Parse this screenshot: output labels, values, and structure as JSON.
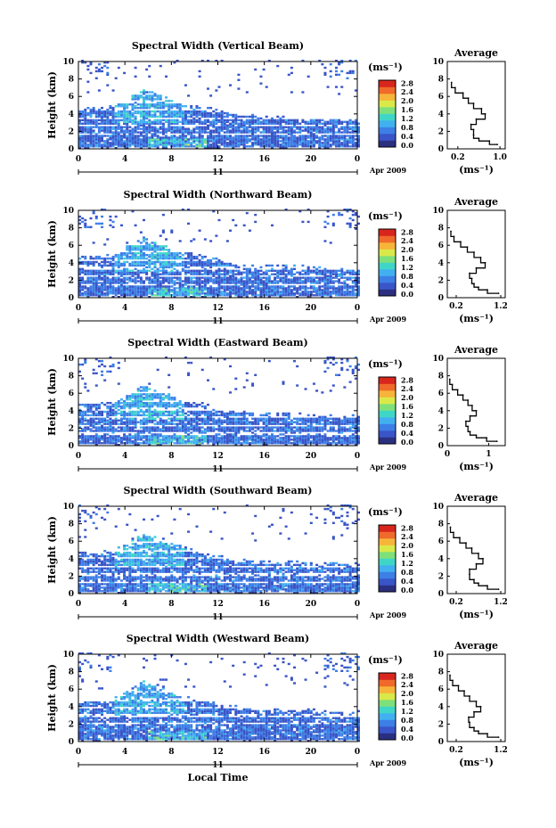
{
  "figure": {
    "x_axis_title": "Local Time",
    "date_label": "Apr 2009",
    "day_label": "11",
    "colorbar_unit": "(ms⁻¹)",
    "colorbar_ticks": [
      "0.0",
      "0.4",
      "0.8",
      "1.2",
      "1.6",
      "2.0",
      "2.4",
      "2.8"
    ],
    "colormap": [
      "#2b2f7f",
      "#3a55c8",
      "#3d7fe6",
      "#42b0f0",
      "#3fd6c8",
      "#7ee07a",
      "#d9e94a",
      "#f7b43a",
      "#f06a2b",
      "#d8261e"
    ]
  },
  "chart_data": [
    {
      "type": "heatmap",
      "title": "Spectral Width (Vertical Beam)",
      "xlabel": "",
      "ylabel": "Height (km)",
      "xlim": [
        0,
        24
      ],
      "ylim": [
        0,
        10
      ],
      "x_ticks": [
        "0",
        "4",
        "8",
        "12",
        "16",
        "20",
        "0"
      ],
      "y_ticks": [
        "0",
        "2",
        "4",
        "6",
        "8",
        "10"
      ],
      "colorbar": {
        "label": "(ms⁻¹)",
        "range": [
          0.0,
          2.8
        ]
      },
      "profile": {
        "type": "line",
        "title": "Average",
        "xlabel": "(ms⁻¹)",
        "x_ticks": [
          "0.2",
          "1.0"
        ],
        "xlim": [
          0.0,
          1.1
        ],
        "y_ticks": [
          "0",
          "2",
          "4",
          "6",
          "8",
          "10"
        ],
        "ylim": [
          0,
          10
        ],
        "points": [
          [
            0.95,
            0.5
          ],
          [
            0.8,
            0.9
          ],
          [
            0.6,
            1.2
          ],
          [
            0.5,
            1.6
          ],
          [
            0.5,
            2.2
          ],
          [
            0.45,
            2.8
          ],
          [
            0.55,
            3.4
          ],
          [
            0.72,
            4.0
          ],
          [
            0.65,
            4.6
          ],
          [
            0.5,
            5.2
          ],
          [
            0.4,
            5.8
          ],
          [
            0.3,
            6.4
          ],
          [
            0.15,
            7.0
          ],
          [
            0.08,
            7.6
          ]
        ]
      }
    },
    {
      "type": "heatmap",
      "title": "Spectral Width (Northward Beam)",
      "xlabel": "",
      "ylabel": "Height (km)",
      "xlim": [
        0,
        24
      ],
      "ylim": [
        0,
        10
      ],
      "x_ticks": [
        "0",
        "4",
        "8",
        "12",
        "16",
        "20",
        "0"
      ],
      "y_ticks": [
        "0",
        "2",
        "4",
        "6",
        "8",
        "10"
      ],
      "colorbar": {
        "label": "(ms⁻¹)",
        "range": [
          0.0,
          2.8
        ]
      },
      "profile": {
        "type": "line",
        "title": "Average",
        "xlabel": "(ms⁻¹)",
        "x_ticks": [
          "0.2",
          "1.2"
        ],
        "xlim": [
          0.0,
          1.3
        ],
        "y_ticks": [
          "0",
          "2",
          "4",
          "6",
          "8",
          "10"
        ],
        "ylim": [
          0,
          10
        ],
        "points": [
          [
            1.15,
            0.5
          ],
          [
            0.9,
            0.9
          ],
          [
            0.7,
            1.2
          ],
          [
            0.6,
            1.6
          ],
          [
            0.55,
            2.2
          ],
          [
            0.5,
            2.8
          ],
          [
            0.65,
            3.4
          ],
          [
            0.85,
            4.0
          ],
          [
            0.75,
            4.6
          ],
          [
            0.6,
            5.2
          ],
          [
            0.45,
            5.8
          ],
          [
            0.3,
            6.4
          ],
          [
            0.15,
            7.0
          ],
          [
            0.08,
            7.6
          ]
        ]
      }
    },
    {
      "type": "heatmap",
      "title": "Spectral Width (Eastward Beam)",
      "xlabel": "",
      "ylabel": "Height (km)",
      "xlim": [
        0,
        24
      ],
      "ylim": [
        0,
        10
      ],
      "x_ticks": [
        "0",
        "4",
        "8",
        "12",
        "16",
        "20",
        "0"
      ],
      "y_ticks": [
        "0",
        "2",
        "4",
        "6",
        "8",
        "10"
      ],
      "colorbar": {
        "label": "(ms⁻¹)",
        "range": [
          0.0,
          2.8
        ]
      },
      "profile": {
        "type": "line",
        "title": "Average",
        "xlabel": "(ms⁻¹)",
        "x_ticks": [
          "0",
          "1"
        ],
        "xlim": [
          0.0,
          1.4
        ],
        "y_ticks": [
          "0",
          "2",
          "4",
          "6",
          "8",
          "10"
        ],
        "ylim": [
          0,
          10
        ],
        "points": [
          [
            1.2,
            0.5
          ],
          [
            0.95,
            0.9
          ],
          [
            0.7,
            1.2
          ],
          [
            0.55,
            1.6
          ],
          [
            0.5,
            2.2
          ],
          [
            0.45,
            2.8
          ],
          [
            0.55,
            3.4
          ],
          [
            0.7,
            4.0
          ],
          [
            0.6,
            4.6
          ],
          [
            0.5,
            5.2
          ],
          [
            0.38,
            5.8
          ],
          [
            0.25,
            6.4
          ],
          [
            0.12,
            7.0
          ],
          [
            0.06,
            7.6
          ]
        ]
      }
    },
    {
      "type": "heatmap",
      "title": "Spectral Width (Southward Beam)",
      "xlabel": "",
      "ylabel": "Height (km)",
      "xlim": [
        0,
        24
      ],
      "ylim": [
        0,
        10
      ],
      "x_ticks": [
        "0",
        "4",
        "8",
        "12",
        "16",
        "20",
        "0"
      ],
      "y_ticks": [
        "0",
        "2",
        "4",
        "6",
        "8",
        "10"
      ],
      "colorbar": {
        "label": "(ms⁻¹)",
        "range": [
          0.0,
          2.8
        ]
      },
      "profile": {
        "type": "line",
        "title": "Average",
        "xlabel": "(ms⁻¹)",
        "x_ticks": [
          "0.2",
          "1.2"
        ],
        "xlim": [
          0.0,
          1.3
        ],
        "y_ticks": [
          "0",
          "2",
          "4",
          "6",
          "8",
          "10"
        ],
        "ylim": [
          0,
          10
        ],
        "points": [
          [
            1.15,
            0.5
          ],
          [
            0.9,
            0.9
          ],
          [
            0.7,
            1.2
          ],
          [
            0.6,
            1.6
          ],
          [
            0.5,
            2.2
          ],
          [
            0.5,
            2.8
          ],
          [
            0.65,
            3.4
          ],
          [
            0.8,
            4.0
          ],
          [
            0.7,
            4.6
          ],
          [
            0.55,
            5.2
          ],
          [
            0.42,
            5.8
          ],
          [
            0.28,
            6.4
          ],
          [
            0.14,
            7.0
          ],
          [
            0.07,
            7.6
          ]
        ]
      }
    },
    {
      "type": "heatmap",
      "title": "Spectral Width (Westward Beam)",
      "xlabel": "Local Time",
      "ylabel": "Height (km)",
      "xlim": [
        0,
        24
      ],
      "ylim": [
        0,
        10
      ],
      "x_ticks": [
        "0",
        "4",
        "8",
        "12",
        "16",
        "20",
        "0"
      ],
      "y_ticks": [
        "0",
        "2",
        "4",
        "6",
        "8",
        "10"
      ],
      "colorbar": {
        "label": "(ms⁻¹)",
        "range": [
          0.0,
          2.8
        ]
      },
      "profile": {
        "type": "line",
        "title": "Average",
        "xlabel": "(ms⁻¹)",
        "x_ticks": [
          "0.2",
          "1.2"
        ],
        "xlim": [
          0.0,
          1.3
        ],
        "y_ticks": [
          "0",
          "2",
          "4",
          "6",
          "8",
          "10"
        ],
        "ylim": [
          0,
          10
        ],
        "points": [
          [
            1.15,
            0.5
          ],
          [
            0.9,
            0.9
          ],
          [
            0.7,
            1.2
          ],
          [
            0.6,
            1.6
          ],
          [
            0.5,
            2.2
          ],
          [
            0.48,
            2.8
          ],
          [
            0.6,
            3.4
          ],
          [
            0.75,
            4.0
          ],
          [
            0.65,
            4.6
          ],
          [
            0.5,
            5.2
          ],
          [
            0.38,
            5.8
          ],
          [
            0.25,
            6.4
          ],
          [
            0.12,
            7.0
          ],
          [
            0.06,
            7.6
          ]
        ]
      }
    }
  ]
}
